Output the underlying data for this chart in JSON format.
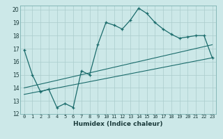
{
  "xlabel": "Humidex (Indice chaleur)",
  "bg_color": "#cce8e8",
  "grid_color": "#aacccc",
  "line_color": "#1a6b6b",
  "xlim": [
    -0.5,
    23.5
  ],
  "ylim": [
    12,
    20.3
  ],
  "yticks": [
    12,
    13,
    14,
    15,
    16,
    17,
    18,
    19,
    20
  ],
  "xticks": [
    0,
    1,
    2,
    3,
    4,
    5,
    6,
    7,
    8,
    9,
    10,
    11,
    12,
    13,
    14,
    15,
    16,
    17,
    18,
    19,
    20,
    21,
    22,
    23
  ],
  "line1_x": [
    0,
    1,
    2,
    3,
    4,
    5,
    6,
    7,
    8,
    9,
    10,
    11,
    12,
    13,
    14,
    15,
    16,
    17,
    18,
    19,
    20,
    21,
    22,
    23
  ],
  "line1_y": [
    16.9,
    15.0,
    13.7,
    13.9,
    12.5,
    12.8,
    12.5,
    15.3,
    15.0,
    17.3,
    19.0,
    18.8,
    18.5,
    19.2,
    20.1,
    19.7,
    19.0,
    18.5,
    18.1,
    17.8,
    17.9,
    18.0,
    18.0,
    16.3
  ],
  "line2_x": [
    0,
    23
  ],
  "line2_y": [
    14.0,
    17.3
  ],
  "line3_x": [
    0,
    23
  ],
  "line3_y": [
    13.5,
    16.3
  ]
}
